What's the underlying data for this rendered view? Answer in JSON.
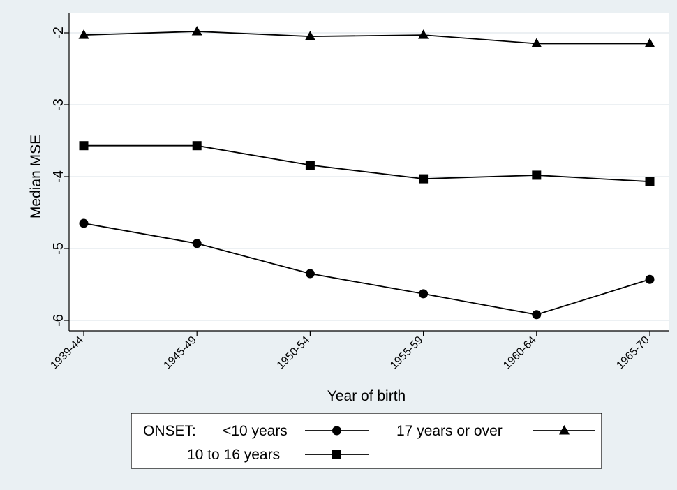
{
  "chart_data": {
    "type": "line",
    "xlabel": "Year of birth",
    "ylabel": "Median MSE",
    "categories": [
      "1939-44",
      "1945-49",
      "1950-54",
      "1955-59",
      "1960-64",
      "1965-70"
    ],
    "ylim": [
      -6.1,
      -1.95
    ],
    "yticks": [
      -2,
      -3,
      -4,
      -5,
      -6
    ],
    "grid": true,
    "legend_position": "bottom",
    "legend_title": "ONSET:",
    "series": [
      {
        "name": "<10 years",
        "marker": "circle",
        "values": [
          -4.65,
          -4.93,
          -5.35,
          -5.63,
          -5.92,
          -5.43
        ]
      },
      {
        "name": "17 years or over",
        "marker": "triangle",
        "values": [
          -2.03,
          -1.98,
          -2.05,
          -2.03,
          -2.15,
          -2.15
        ]
      },
      {
        "name": "10 to 16 years",
        "marker": "square",
        "values": [
          -3.57,
          -3.57,
          -3.84,
          -4.03,
          -3.98,
          -4.07
        ]
      }
    ],
    "colors": {
      "outer_background": "#eaf0f3",
      "plot_background": "#ffffff",
      "line": "#000000",
      "grid": "#e6ecef"
    }
  }
}
